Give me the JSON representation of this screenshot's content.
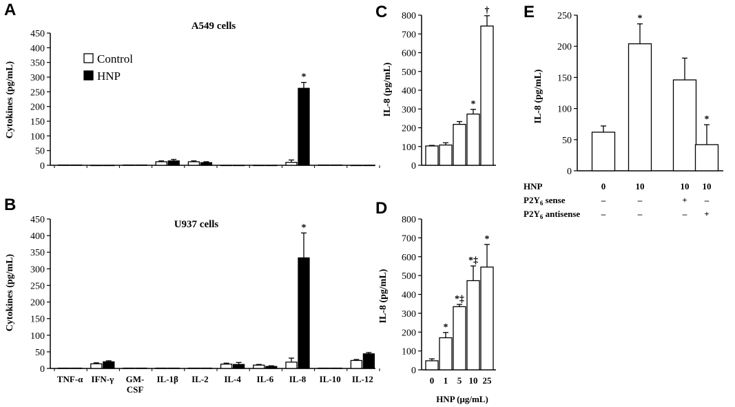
{
  "chart_data": [
    {
      "panel": "A",
      "type": "bar",
      "title": "A549 cells",
      "ylabel": "Cytokines (pg/mL)",
      "ylim": [
        0,
        450
      ],
      "yticks": [
        0,
        50,
        100,
        150,
        200,
        250,
        300,
        350,
        400,
        450
      ],
      "categories": [
        "TNF-α",
        "IFN-γ",
        "GM-CSF",
        "IL-1β",
        "IL-2",
        "IL-4",
        "IL-6",
        "IL-8",
        "IL-10",
        "IL-12"
      ],
      "show_categories": false,
      "legend": {
        "entries": [
          "Control",
          "HNP"
        ],
        "placement": "upper-left"
      },
      "series": [
        {
          "name": "Control",
          "fill": "#ffffff",
          "values": [
            1,
            0,
            1,
            12,
            12,
            0,
            0,
            10,
            1,
            0
          ],
          "errors": [
            0,
            0,
            0,
            3,
            3,
            0,
            0,
            8,
            0,
            0
          ]
        },
        {
          "name": "HNP",
          "fill": "#000000",
          "values": [
            1,
            0,
            1,
            15,
            9,
            0,
            0,
            262,
            1,
            0
          ],
          "errors": [
            0,
            0,
            0,
            5,
            3,
            0,
            0,
            20,
            0,
            0
          ]
        }
      ],
      "annotations": [
        {
          "text": "*",
          "category": 7,
          "series": 1
        }
      ]
    },
    {
      "panel": "B",
      "type": "bar",
      "title": "U937 cells",
      "ylabel": "Cytokines (pg/mL)",
      "ylim": [
        0,
        450
      ],
      "yticks": [
        0,
        50,
        100,
        150,
        200,
        250,
        300,
        350,
        400,
        450
      ],
      "categories": [
        "TNF-α",
        "IFN-γ",
        "GM-\nCSF",
        "IL-1β",
        "IL-2",
        "IL-4",
        "IL-6",
        "IL-8",
        "IL-10",
        "IL-12"
      ],
      "show_categories": true,
      "series": [
        {
          "name": "Control",
          "fill": "#ffffff",
          "values": [
            1,
            14,
            1,
            1,
            1,
            13,
            10,
            19,
            1,
            24
          ],
          "errors": [
            0,
            3,
            0,
            0,
            0,
            3,
            2,
            12,
            0,
            3
          ]
        },
        {
          "name": "HNP",
          "fill": "#000000",
          "values": [
            1,
            20,
            1,
            1,
            1,
            12,
            6,
            333,
            1,
            44
          ],
          "errors": [
            0,
            3,
            0,
            0,
            0,
            6,
            2,
            75,
            0,
            4
          ]
        }
      ],
      "annotations": [
        {
          "text": "*",
          "category": 7,
          "series": 1
        }
      ]
    },
    {
      "panel": "C",
      "type": "bar",
      "ylabel": "IL-8 (pg/mL)",
      "ylim": [
        0,
        800
      ],
      "yticks": [
        0,
        100,
        200,
        300,
        400,
        500,
        600,
        700,
        800
      ],
      "categories": [
        "",
        "",
        "",
        "",
        ""
      ],
      "show_categories": false,
      "series": [
        {
          "fill": "#ffffff",
          "values": [
            103,
            108,
            218,
            273,
            742
          ],
          "errors": [
            3,
            12,
            15,
            25,
            55
          ]
        }
      ],
      "annotations": [
        {
          "text": "*",
          "category": 3
        },
        {
          "text": "†",
          "category": 4
        }
      ]
    },
    {
      "panel": "D",
      "type": "bar",
      "ylabel": "IL-8 (pg/mL)",
      "xlabel": "HNP (μg/mL)",
      "ylim": [
        0,
        800
      ],
      "yticks": [
        0,
        100,
        200,
        300,
        400,
        500,
        600,
        700,
        800
      ],
      "categories": [
        "0",
        "1",
        "5",
        "10",
        "25"
      ],
      "show_categories": true,
      "series": [
        {
          "fill": "#ffffff",
          "values": [
            48,
            170,
            335,
            473,
            545
          ],
          "errors": [
            10,
            28,
            12,
            78,
            120
          ]
        }
      ],
      "annotations": [
        {
          "text": "*",
          "category": 1
        },
        {
          "text": "*‡",
          "category": 2
        },
        {
          "text": "*‡",
          "category": 3
        },
        {
          "text": "*",
          "category": 4
        }
      ]
    },
    {
      "panel": "E",
      "type": "bar",
      "ylabel": "IL-8 (pg/mL)",
      "ylim": [
        0,
        250
      ],
      "yticks": [
        0,
        50,
        100,
        150,
        200,
        250
      ],
      "categories": [
        "",
        "",
        "",
        ""
      ],
      "show_categories": false,
      "series": [
        {
          "fill": "#ffffff",
          "values": [
            62,
            204,
            146,
            42
          ],
          "errors": [
            10,
            32,
            35,
            32
          ]
        }
      ],
      "annotations": [
        {
          "text": "*",
          "category": 1
        },
        {
          "text": "*",
          "category": 3
        }
      ],
      "condition_table": {
        "rows": [
          {
            "label": "HNP",
            "values": [
              "0",
              "10",
              "10",
              "10"
            ]
          },
          {
            "label": "P2Y6 sense",
            "values": [
              "–",
              "–",
              "+",
              "–"
            ]
          },
          {
            "label": "P2Y6 antisense",
            "values": [
              "–",
              "–",
              "–",
              "+"
            ]
          }
        ]
      }
    }
  ]
}
